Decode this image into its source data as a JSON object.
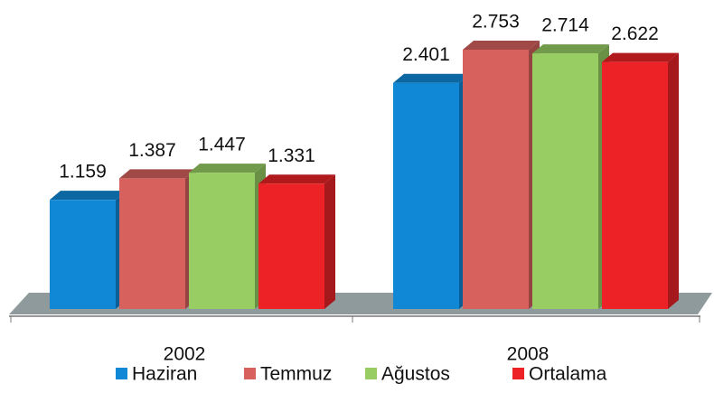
{
  "chart_data": {
    "type": "bar3d",
    "categories": [
      "2002",
      "2008"
    ],
    "series": [
      {
        "name": "Haziran",
        "color": "#1088d6",
        "values": [
          1159,
          2401
        ],
        "value_labels": [
          "1.159",
          "2.401"
        ]
      },
      {
        "name": "Temmuz",
        "color": "#d6615d",
        "values": [
          1387,
          2753
        ],
        "value_labels": [
          "1.387",
          "2.753"
        ]
      },
      {
        "name": "Ağustos",
        "color": "#97cd63",
        "values": [
          1447,
          2714
        ],
        "value_labels": [
          "1.447",
          "2.714"
        ]
      },
      {
        "name": "Ortalama",
        "color": "#ec2226",
        "values": [
          1331,
          2622
        ],
        "value_labels": [
          "1.331",
          "2.622"
        ]
      }
    ],
    "legend": "bottom"
  }
}
